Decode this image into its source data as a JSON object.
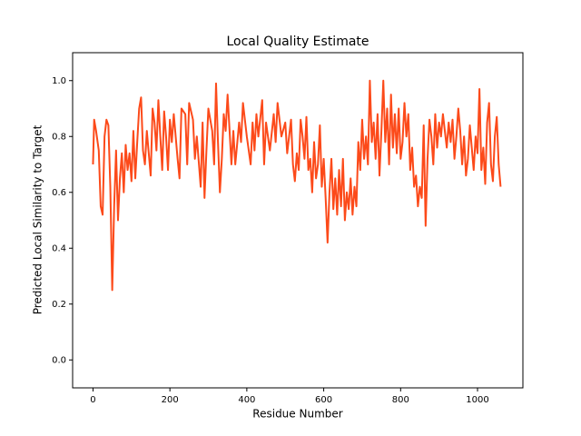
{
  "chart_data": {
    "type": "line",
    "title": "Local Quality Estimate",
    "x_label": "Residue Number",
    "y_label": "Predicted Local Similarity to Target",
    "x": [
      0,
      3,
      8,
      15,
      20,
      25,
      30,
      35,
      40,
      45,
      50,
      55,
      60,
      65,
      70,
      75,
      80,
      85,
      90,
      95,
      100,
      105,
      110,
      115,
      120,
      125,
      130,
      135,
      140,
      150,
      155,
      160,
      165,
      170,
      175,
      180,
      185,
      190,
      195,
      200,
      205,
      210,
      220,
      225,
      230,
      240,
      245,
      250,
      260,
      265,
      270,
      280,
      285,
      290,
      295,
      300,
      310,
      315,
      320,
      325,
      330,
      335,
      340,
      345,
      350,
      360,
      365,
      370,
      380,
      385,
      390,
      400,
      410,
      415,
      420,
      425,
      430,
      440,
      445,
      450,
      460,
      470,
      475,
      480,
      490,
      500,
      505,
      510,
      515,
      520,
      525,
      530,
      535,
      540,
      545,
      550,
      555,
      560,
      565,
      570,
      575,
      580,
      585,
      590,
      595,
      600,
      605,
      610,
      615,
      620,
      625,
      630,
      635,
      640,
      645,
      650,
      655,
      660,
      665,
      670,
      675,
      680,
      685,
      690,
      695,
      700,
      705,
      710,
      715,
      720,
      725,
      730,
      735,
      740,
      745,
      750,
      755,
      760,
      765,
      770,
      775,
      780,
      785,
      790,
      795,
      800,
      805,
      810,
      815,
      820,
      825,
      830,
      835,
      840,
      845,
      850,
      855,
      860,
      865,
      870,
      875,
      880,
      885,
      890,
      895,
      900,
      905,
      910,
      920,
      925,
      930,
      935,
      940,
      945,
      950,
      955,
      960,
      965,
      970,
      975,
      980,
      990,
      995,
      1000,
      1005,
      1010,
      1015,
      1020,
      1025,
      1030,
      1035,
      1040,
      1045,
      1050,
      1055,
      1060
    ],
    "series": [
      {
        "name": "Local Quality",
        "color": "#fc4a1a",
        "values": [
          0.7,
          0.86,
          0.82,
          0.75,
          0.55,
          0.52,
          0.8,
          0.86,
          0.84,
          0.62,
          0.25,
          0.55,
          0.75,
          0.5,
          0.65,
          0.74,
          0.6,
          0.77,
          0.68,
          0.74,
          0.64,
          0.82,
          0.65,
          0.78,
          0.9,
          0.94,
          0.75,
          0.7,
          0.82,
          0.66,
          0.9,
          0.85,
          0.75,
          0.93,
          0.8,
          0.68,
          0.89,
          0.8,
          0.68,
          0.86,
          0.78,
          0.88,
          0.72,
          0.65,
          0.9,
          0.88,
          0.7,
          0.92,
          0.86,
          0.72,
          0.8,
          0.62,
          0.85,
          0.58,
          0.75,
          0.9,
          0.82,
          0.7,
          0.99,
          0.78,
          0.6,
          0.72,
          0.88,
          0.82,
          0.95,
          0.7,
          0.82,
          0.7,
          0.85,
          0.78,
          0.92,
          0.8,
          0.7,
          0.85,
          0.75,
          0.88,
          0.8,
          0.93,
          0.7,
          0.85,
          0.75,
          0.88,
          0.78,
          0.92,
          0.8,
          0.85,
          0.74,
          0.8,
          0.86,
          0.7,
          0.64,
          0.74,
          0.68,
          0.86,
          0.8,
          0.72,
          0.87,
          0.68,
          0.72,
          0.6,
          0.78,
          0.65,
          0.7,
          0.84,
          0.62,
          0.72,
          0.58,
          0.42,
          0.6,
          0.72,
          0.54,
          0.65,
          0.52,
          0.68,
          0.55,
          0.72,
          0.5,
          0.6,
          0.54,
          0.65,
          0.52,
          0.62,
          0.55,
          0.78,
          0.68,
          0.86,
          0.72,
          0.8,
          0.7,
          1.0,
          0.78,
          0.85,
          0.72,
          0.88,
          0.66,
          0.82,
          1.0,
          0.78,
          0.9,
          0.7,
          0.95,
          0.76,
          0.88,
          0.74,
          0.9,
          0.72,
          0.78,
          0.92,
          0.8,
          0.88,
          0.68,
          0.76,
          0.62,
          0.66,
          0.55,
          0.62,
          0.58,
          0.84,
          0.48,
          0.72,
          0.86,
          0.8,
          0.7,
          0.88,
          0.76,
          0.85,
          0.8,
          0.88,
          0.76,
          0.85,
          0.78,
          0.86,
          0.72,
          0.8,
          0.9,
          0.82,
          0.7,
          0.8,
          0.66,
          0.72,
          0.84,
          0.68,
          0.8,
          0.74,
          0.97,
          0.68,
          0.76,
          0.63,
          0.85,
          0.92,
          0.7,
          0.64,
          0.8,
          0.87,
          0.7,
          0.62
        ]
      }
    ],
    "xlim": [
      -53,
      1118
    ],
    "ylim": [
      -0.1,
      1.1
    ],
    "xticks": [
      0,
      200,
      400,
      600,
      800,
      1000
    ],
    "yticks": [
      {
        "value": 0,
        "label": "0.0"
      },
      0.2,
      0.4,
      0.6,
      0.8,
      {
        "value": 1,
        "label": "1.0"
      }
    ]
  }
}
